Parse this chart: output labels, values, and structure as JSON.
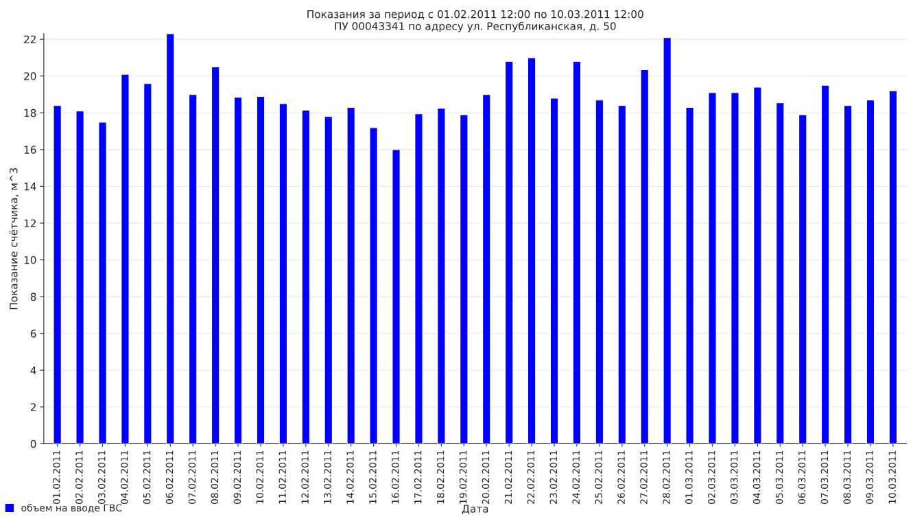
{
  "chart_data": {
    "type": "bar",
    "title": "Показания за период с 01.02.2011 12:00 по 10.03.2011 12:00\nПУ 00043341 по адресу ул. Республиканская, д. 50",
    "xlabel": "Дата",
    "ylabel": "Показание счётчика, м^3",
    "categories": [
      "01.02.2011",
      "02.02.2011",
      "03.02.2011",
      "04.02.2011",
      "05.02.2011",
      "06.02.2011",
      "07.02.2011",
      "08.02.2011",
      "09.02.2011",
      "10.02.2011",
      "11.02.2011",
      "12.02.2011",
      "13.02.2011",
      "14.02.2011",
      "15.02.2011",
      "16.02.2011",
      "17.02.2011",
      "18.02.2011",
      "19.02.2011",
      "20.02.2011",
      "21.02.2011",
      "22.02.2011",
      "23.02.2011",
      "24.02.2011",
      "25.02.2011",
      "26.02.2011",
      "27.02.2011",
      "28.02.2011",
      "01.03.2011",
      "02.03.2011",
      "03.03.2011",
      "04.03.2011",
      "05.03.2011",
      "06.03.2011",
      "07.03.2011",
      "08.03.2011",
      "09.03.2011",
      "10.03.2011"
    ],
    "series": [
      {
        "name": "объем на вводе ГВС",
        "color": "#0000ff",
        "values": [
          18.4,
          18.1,
          17.5,
          20.1,
          19.6,
          22.3,
          19.0,
          20.5,
          18.85,
          18.9,
          18.5,
          18.15,
          17.8,
          18.3,
          17.2,
          16.0,
          17.95,
          18.25,
          17.9,
          19.0,
          20.8,
          21.0,
          18.8,
          20.8,
          18.7,
          18.4,
          20.35,
          22.1,
          18.3,
          19.1,
          19.1,
          19.4,
          18.55,
          17.9,
          19.5,
          18.4,
          18.7,
          19.2
        ]
      }
    ],
    "ylim": [
      0,
      22.3
    ],
    "yticks": [
      0,
      2,
      4,
      6,
      8,
      10,
      12,
      14,
      16,
      18,
      20,
      22
    ],
    "grid": "y",
    "legend": "bottom left"
  }
}
